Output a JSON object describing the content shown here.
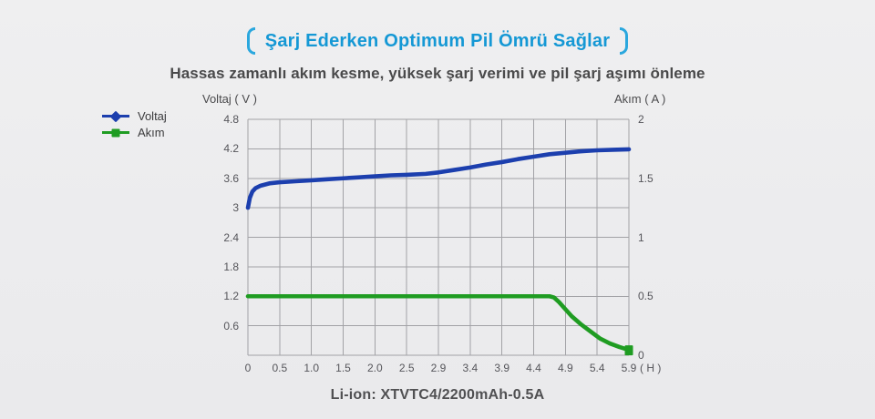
{
  "page": {
    "title": "Şarj Ederken Optimum Pil Ömrü Sağlar",
    "subtitle": "Hassas zamanlı akım kesme, yüksek şarj verimi ve pil şarj aşımı önleme",
    "caption": "Li-ion: XTVTC4/2200mAh-0.5A"
  },
  "colors": {
    "title_blue": "#1598d5",
    "bracket_blue": "#2aa7de",
    "voltage_blue": "#1c3fae",
    "current_green": "#1f9c22",
    "grid_gray": "#a2a2a6",
    "text_dark": "#4a4a4b",
    "tick_gray": "#55555a"
  },
  "chart_data": {
    "type": "line",
    "title": "Şarj Ederken Optimum Pil Ömrü Sağlar",
    "grid": true,
    "legend_position": "top-left",
    "axes": {
      "left": {
        "label": "Voltaj ( V )",
        "min": 0,
        "max": 4.8,
        "ticks": [
          "4.8",
          "4.2",
          "3.6",
          "3",
          "2.4",
          "1.8",
          "1.2",
          "0.6"
        ]
      },
      "right": {
        "label": "Akım ( A )",
        "min": 0,
        "max": 2,
        "ticks": [
          "2",
          "1.5",
          "1",
          "0.5",
          "0"
        ]
      },
      "x": {
        "unit": "( H )",
        "ticks": [
          "0",
          "0.5",
          "1.0",
          "1.5",
          "2.0",
          "2.5",
          "2.9",
          "3.4",
          "3.9",
          "4.4",
          "4.9",
          "5.4",
          "5.9"
        ]
      }
    },
    "series": [
      {
        "name": "Voltaj",
        "axis": "left",
        "color": "#1c3fae",
        "marker": "diamond",
        "points": [
          [
            0,
            3.0
          ],
          [
            0.03,
            3.2
          ],
          [
            0.07,
            3.33
          ],
          [
            0.12,
            3.4
          ],
          [
            0.2,
            3.45
          ],
          [
            0.35,
            3.5
          ],
          [
            0.5,
            3.52
          ],
          [
            0.75,
            3.54
          ],
          [
            1.0,
            3.56
          ],
          [
            1.25,
            3.58
          ],
          [
            1.5,
            3.6
          ],
          [
            1.75,
            3.62
          ],
          [
            2.0,
            3.64
          ],
          [
            2.25,
            3.66
          ],
          [
            2.5,
            3.67
          ],
          [
            2.7,
            3.69
          ],
          [
            2.9,
            3.72
          ],
          [
            3.15,
            3.77
          ],
          [
            3.4,
            3.82
          ],
          [
            3.65,
            3.88
          ],
          [
            3.9,
            3.93
          ],
          [
            4.15,
            3.99
          ],
          [
            4.4,
            4.04
          ],
          [
            4.65,
            4.09
          ],
          [
            4.9,
            4.12
          ],
          [
            5.15,
            4.15
          ],
          [
            5.4,
            4.17
          ],
          [
            5.65,
            4.18
          ],
          [
            5.9,
            4.19
          ]
        ]
      },
      {
        "name": "Akım",
        "axis": "right",
        "color": "#1f9c22",
        "marker": "square",
        "end_marker": true,
        "points": [
          [
            0,
            0.5
          ],
          [
            0.5,
            0.5
          ],
          [
            1.0,
            0.5
          ],
          [
            1.5,
            0.5
          ],
          [
            2.0,
            0.5
          ],
          [
            2.5,
            0.5
          ],
          [
            2.9,
            0.5
          ],
          [
            3.4,
            0.5
          ],
          [
            3.9,
            0.5
          ],
          [
            4.4,
            0.5
          ],
          [
            4.65,
            0.5
          ],
          [
            4.72,
            0.49
          ],
          [
            4.8,
            0.45
          ],
          [
            4.9,
            0.39
          ],
          [
            5.0,
            0.33
          ],
          [
            5.15,
            0.26
          ],
          [
            5.3,
            0.2
          ],
          [
            5.45,
            0.14
          ],
          [
            5.6,
            0.1
          ],
          [
            5.75,
            0.07
          ],
          [
            5.9,
            0.045
          ]
        ]
      }
    ]
  }
}
